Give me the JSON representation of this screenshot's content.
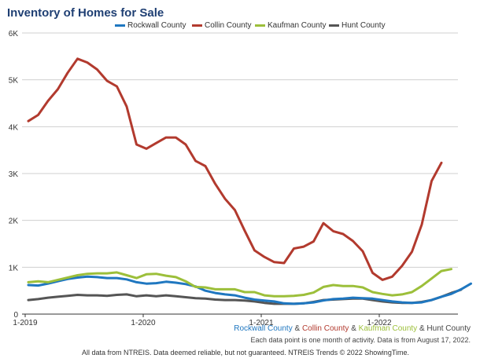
{
  "chart_data": {
    "type": "line",
    "title": "Inventory of Homes for Sale",
    "x_start": "2019-01",
    "x_ticks": [
      "1-2019",
      "1-2020",
      "1-2021",
      "1-2022"
    ],
    "y_ticks": [
      "0",
      "1K",
      "2K",
      "3K",
      "4K",
      "5K",
      "6K"
    ],
    "ylim": [
      0,
      6000
    ],
    "grid": true,
    "legend_position": "top",
    "series": [
      {
        "name": "Rockwall County",
        "color": "#1f77c0",
        "values": [
          620,
          610,
          650,
          700,
          750,
          780,
          800,
          790,
          770,
          770,
          740,
          680,
          650,
          660,
          690,
          670,
          640,
          590,
          500,
          450,
          420,
          400,
          350,
          310,
          290,
          270,
          230,
          220,
          230,
          250,
          290,
          320,
          330,
          350,
          340,
          330,
          300,
          270,
          250,
          240,
          250,
          300,
          370,
          430,
          530,
          650
        ]
      },
      {
        "name": "Collin County",
        "color": "#b23a2e",
        "values": [
          4120,
          4250,
          4550,
          4800,
          5150,
          5450,
          5370,
          5220,
          4980,
          4860,
          4430,
          3620,
          3530,
          3650,
          3770,
          3770,
          3620,
          3270,
          3160,
          2780,
          2460,
          2220,
          1780,
          1360,
          1220,
          1110,
          1090,
          1400,
          1440,
          1550,
          1940,
          1770,
          1710,
          1560,
          1340,
          880,
          730,
          800,
          1030,
          1330,
          1910,
          2840,
          3230
        ]
      },
      {
        "name": "Kaufman County",
        "color": "#9cbf3a",
        "values": [
          680,
          700,
          680,
          730,
          780,
          830,
          860,
          870,
          870,
          890,
          830,
          770,
          850,
          860,
          820,
          790,
          700,
          580,
          570,
          530,
          530,
          530,
          470,
          470,
          400,
          380,
          380,
          390,
          410,
          460,
          580,
          620,
          600,
          600,
          570,
          470,
          430,
          400,
          420,
          470,
          600,
          760,
          920,
          960
        ]
      },
      {
        "name": "Hunt County",
        "color": "#555555",
        "values": [
          300,
          320,
          350,
          370,
          390,
          410,
          400,
          400,
          390,
          410,
          420,
          380,
          400,
          380,
          400,
          380,
          360,
          340,
          330,
          310,
          300,
          300,
          290,
          270,
          240,
          220,
          220,
          220,
          230,
          260,
          300,
          310,
          320,
          330,
          330,
          300,
          270,
          250,
          240,
          240,
          260,
          300,
          370,
          450,
          520
        ]
      }
    ],
    "legend_names": [
      "Rockwall County",
      "Collin County",
      "Kaufman County",
      "Hunt County"
    ]
  },
  "credit": {
    "rockwall": "Rockwall County",
    "collin": "Collin County",
    "kaufman": "Kaufman County",
    "hunt": "Hunt County",
    "amp": "&"
  },
  "note": "Each data point is one month of activity. Data is from August 17, 2022.",
  "footer": "All data from NTREIS. Data deemed reliable, but not guaranteed. NTREIS Trends © 2022 ShowingTime."
}
